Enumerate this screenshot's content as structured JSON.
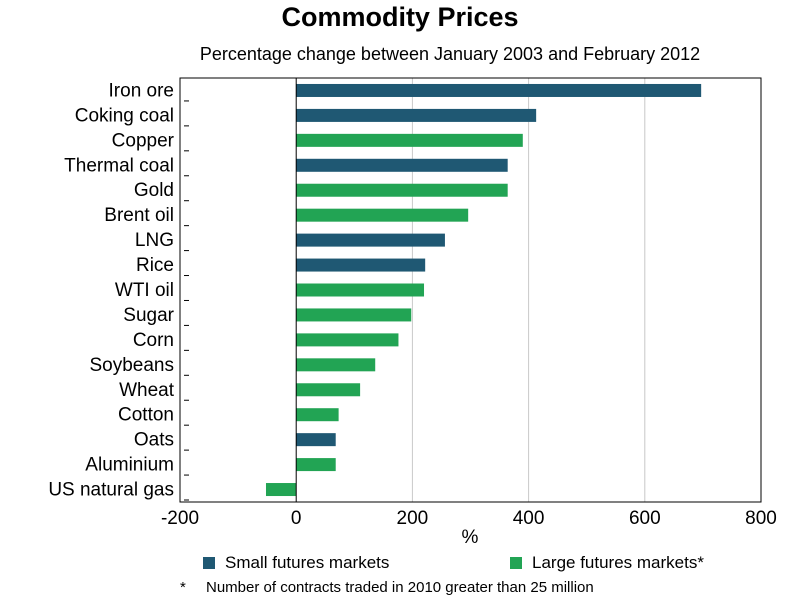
{
  "colors": {
    "small": "#1f5873",
    "large": "#22a454",
    "grid": "#c8c8c8",
    "axis": "#000000"
  },
  "legend": {
    "small_label": "Small futures markets",
    "large_label": "Large futures markets*"
  },
  "footnote": {
    "marker": "*",
    "text": "Number of contracts traded in 2010 greater than 25 million"
  },
  "chart_data": {
    "type": "bar",
    "orientation": "horizontal",
    "title": "Commodity Prices",
    "subtitle": "Percentage change between January 2003 and February 2012",
    "xlabel": "%",
    "ylabel": "",
    "xlim": [
      -200,
      800
    ],
    "xticks": [
      -200,
      0,
      200,
      400,
      600,
      800
    ],
    "grid": true,
    "legend_position": "bottom",
    "categories": [
      "Iron ore",
      "Coking coal",
      "Copper",
      "Thermal coal",
      "Gold",
      "Brent oil",
      "LNG",
      "Rice",
      "WTI oil",
      "Sugar",
      "Corn",
      "Soybeans",
      "Wheat",
      "Cotton",
      "Oats",
      "Aluminium",
      "US natural gas"
    ],
    "values": [
      697,
      413,
      390,
      364,
      364,
      296,
      256,
      222,
      220,
      198,
      176,
      136,
      110,
      73,
      68,
      68,
      -52
    ],
    "groups": [
      "small",
      "small",
      "large",
      "small",
      "large",
      "large",
      "small",
      "small",
      "large",
      "large",
      "large",
      "large",
      "large",
      "large",
      "small",
      "large",
      "large"
    ],
    "series": [
      {
        "name": "Small futures markets",
        "key": "small"
      },
      {
        "name": "Large futures markets*",
        "key": "large"
      }
    ]
  }
}
